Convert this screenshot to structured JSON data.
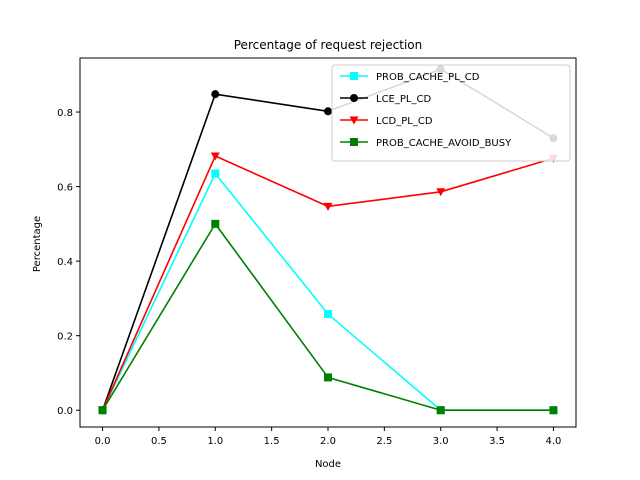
{
  "chart_data": {
    "type": "line",
    "title": "Percentage of request rejection",
    "xlabel": "Node",
    "ylabel": "Percentage",
    "xlim": [
      -0.2,
      4.2
    ],
    "ylim": [
      -0.045,
      0.945
    ],
    "xticks": [
      "0.0",
      "0.5",
      "1.0",
      "1.5",
      "2.0",
      "2.5",
      "3.0",
      "3.5",
      "4.0"
    ],
    "xtick_values": [
      0,
      0.5,
      1,
      1.5,
      2,
      2.5,
      3,
      3.5,
      4
    ],
    "yticks": [
      "0.0",
      "0.2",
      "0.4",
      "0.6",
      "0.8"
    ],
    "ytick_values": [
      0,
      0.2,
      0.4,
      0.6,
      0.8
    ],
    "grid": false,
    "legend_position": "top-right",
    "x": [
      0,
      1,
      2,
      3,
      4
    ],
    "series": [
      {
        "name": "PROB_CACHE_PL_CD",
        "color": "#00ffff",
        "marker": "square",
        "values": [
          0,
          0.635,
          0.258,
          0,
          0
        ]
      },
      {
        "name": "LCE_PL_CD",
        "color": "#000000",
        "marker": "circle",
        "values": [
          0,
          0.848,
          0.802,
          0.915,
          0.73
        ]
      },
      {
        "name": "LCD_PL_CD",
        "color": "#ff0000",
        "marker": "triangle-down",
        "values": [
          0,
          0.682,
          0.547,
          0.586,
          0.676
        ]
      },
      {
        "name": "PROB_CACHE_AVOID_BUSY",
        "color": "#008000",
        "marker": "square",
        "values": [
          0,
          0.5,
          0.088,
          0,
          0
        ]
      }
    ]
  }
}
